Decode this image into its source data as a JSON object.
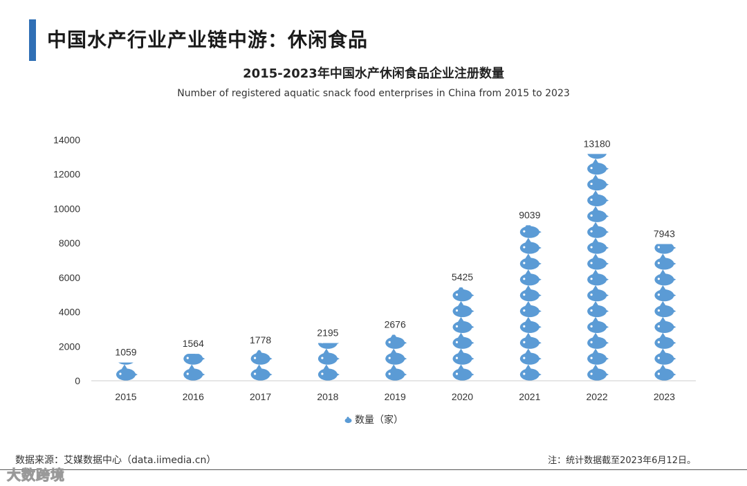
{
  "page": {
    "title": "中国水产行业产业链中游：休闲食品",
    "source": "数据来源：艾媒数据中心（data.iimedia.cn）",
    "footnote": "注：统计数据截至2023年6月12日。",
    "watermark": "大数跨境"
  },
  "colors": {
    "accent": "#2f6fb5",
    "fish": "#5b9bd5",
    "axis": "#cccccc",
    "text": "#333333"
  },
  "chart_data": {
    "type": "bar",
    "title": "2015-2023年中国水产休闲食品企业注册数量",
    "subtitle": "Number of registered aquatic snack food enterprises in China from 2015 to 2023",
    "categories": [
      "2015",
      "2016",
      "2017",
      "2018",
      "2019",
      "2020",
      "2021",
      "2022",
      "2023"
    ],
    "series": [
      {
        "name": "数量（家）",
        "values": [
          1059,
          1564,
          1778,
          2195,
          2676,
          5425,
          9039,
          13180,
          7943
        ]
      }
    ],
    "data_labels": [
      "1059",
      "1564",
      "1778",
      "2195",
      "2676",
      "5425",
      "9039",
      "13180",
      "7943"
    ],
    "yticks": [
      "0",
      "2000",
      "4000",
      "6000",
      "8000",
      "10000",
      "12000",
      "14000"
    ],
    "ylim": [
      0,
      14000
    ],
    "xlabel": "",
    "ylabel": "",
    "grid": false,
    "legend": "bottom-center",
    "bar_style": "pictograph-fish"
  }
}
